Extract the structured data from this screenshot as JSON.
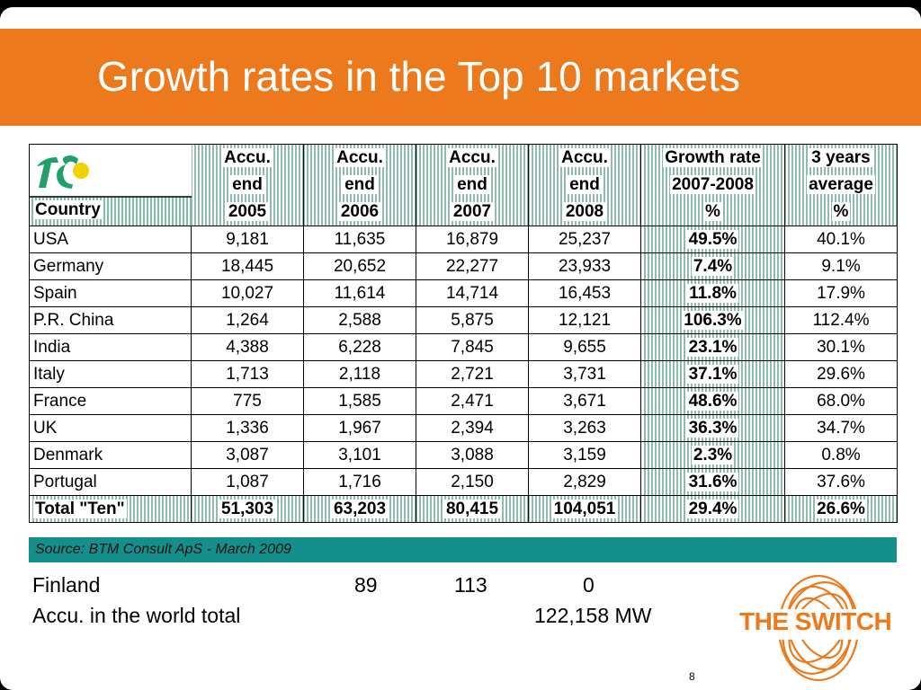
{
  "title": "Growth rates in the Top 10 markets",
  "header": {
    "country": "Country",
    "columns": [
      [
        "Accu.",
        "end",
        "2005"
      ],
      [
        "Accu.",
        "end",
        "2006"
      ],
      [
        "Accu.",
        "end",
        "2007"
      ],
      [
        "Accu.",
        "end",
        "2008"
      ],
      [
        "Growth rate",
        "2007-2008",
        "%"
      ],
      [
        "3 years",
        "average",
        "%"
      ]
    ]
  },
  "rows": [
    {
      "country": "USA",
      "v2005": "9,181",
      "v2006": "11,635",
      "v2007": "16,879",
      "v2008": "25,237",
      "growth": "49.5%",
      "avg3": "40.1%"
    },
    {
      "country": "Germany",
      "v2005": "18,445",
      "v2006": "20,652",
      "v2007": "22,277",
      "v2008": "23,933",
      "growth": "7.4%",
      "avg3": "9.1%"
    },
    {
      "country": "Spain",
      "v2005": "10,027",
      "v2006": "11,614",
      "v2007": "14,714",
      "v2008": "16,453",
      "growth": "11.8%",
      "avg3": "17.9%"
    },
    {
      "country": "P.R. China",
      "v2005": "1,264",
      "v2006": "2,588",
      "v2007": "5,875",
      "v2008": "12,121",
      "growth": "106.3%",
      "avg3": "112.4%"
    },
    {
      "country": "India",
      "v2005": "4,388",
      "v2006": "6,228",
      "v2007": "7,845",
      "v2008": "9,655",
      "growth": "23.1%",
      "avg3": "30.1%"
    },
    {
      "country": "Italy",
      "v2005": "1,713",
      "v2006": "2,118",
      "v2007": "2,721",
      "v2008": "3,731",
      "growth": "37.1%",
      "avg3": "29.6%"
    },
    {
      "country": "France",
      "v2005": "775",
      "v2006": "1,585",
      "v2007": "2,471",
      "v2008": "3,671",
      "growth": "48.6%",
      "avg3": "68.0%"
    },
    {
      "country": "UK",
      "v2005": "1,336",
      "v2006": "1,967",
      "v2007": "2,394",
      "v2008": "3,263",
      "growth": "36.3%",
      "avg3": "34.7%"
    },
    {
      "country": "Denmark",
      "v2005": "3,087",
      "v2006": "3,101",
      "v2007": "3,088",
      "v2008": "3,159",
      "growth": "2.3%",
      "avg3": "0.8%"
    },
    {
      "country": "Portugal",
      "v2005": "1,087",
      "v2006": "1,716",
      "v2007": "2,150",
      "v2008": "2,829",
      "growth": "31.6%",
      "avg3": "37.6%"
    }
  ],
  "total": {
    "country": "Total \"Ten\"",
    "v2005": "51,303",
    "v2006": "63,203",
    "v2007": "80,415",
    "v2008": "104,051",
    "growth": "29.4%",
    "avg3": "26.6%"
  },
  "source": "Source: BTM Consult ApS - March 2009",
  "finland": {
    "label": "Finland",
    "v2006": "89",
    "v2007": "113",
    "v2008": "0"
  },
  "world": {
    "label": "Accu. in the world total",
    "value": "122,158 MW"
  },
  "page_number": "8",
  "logo_text": "THE SWITCH",
  "colors": {
    "banner": "#ec7a1c",
    "hatch": "#1c7a5a",
    "source_bar": "#158f8c",
    "logo_green": "#22a06b",
    "logo_yellow": "#f2d300"
  }
}
